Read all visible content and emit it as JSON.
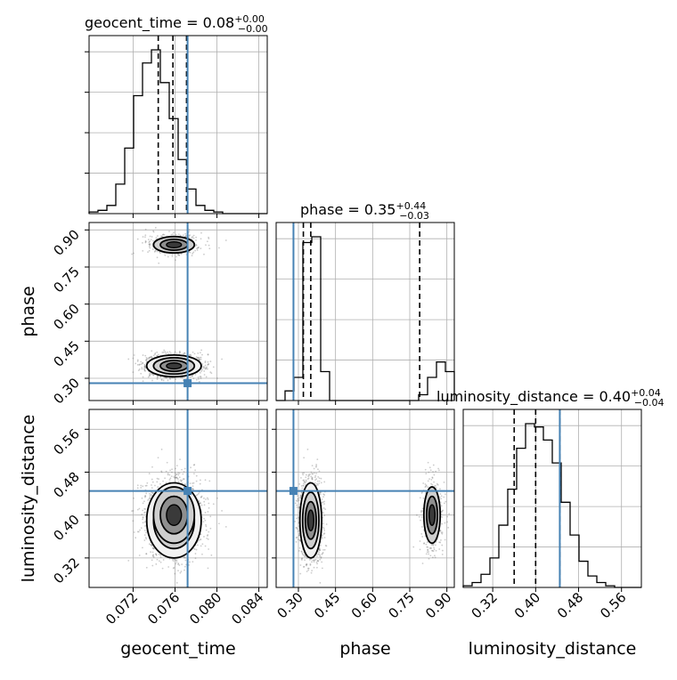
{
  "chart_data": {
    "type": "corner",
    "parameters": [
      "geocent_time",
      "phase",
      "luminosity_distance"
    ],
    "titles": [
      {
        "param": "geocent_time",
        "text": "geocent_time = 0.08",
        "plus": "+0.00",
        "minus": "−0.00"
      },
      {
        "param": "phase",
        "text": "phase = 0.35",
        "plus": "+0.44",
        "minus": "−0.03"
      },
      {
        "param": "luminosity_distance",
        "text": "luminosity_distance = 0.40",
        "plus": "+0.04",
        "minus": "−0.04"
      }
    ],
    "axes": {
      "geocent_time": {
        "range": [
          0.0678,
          0.0848
        ],
        "ticks": [
          0.072,
          0.076,
          0.08,
          0.084
        ],
        "tick_labels": [
          "0.072",
          "0.076",
          "0.080",
          "0.084"
        ]
      },
      "phase": {
        "range": [
          0.21,
          0.93
        ],
        "ticks": [
          0.3,
          0.45,
          0.6,
          0.75,
          0.9
        ],
        "tick_labels": [
          "0.30",
          "0.45",
          "0.60",
          "0.75",
          "0.90"
        ]
      },
      "luminosity_distance": {
        "range": [
          0.265,
          0.597
        ],
        "ticks": [
          0.32,
          0.4,
          0.48,
          0.56
        ],
        "tick_labels": [
          "0.32",
          "0.40",
          "0.48",
          "0.56"
        ]
      }
    },
    "truths": {
      "geocent_time": 0.0772,
      "phase": 0.28,
      "luminosity_distance": 0.445
    },
    "quantiles": {
      "geocent_time": [
        0.0744,
        0.0758,
        0.0771
      ],
      "phase": [
        0.32,
        0.35,
        0.79
      ],
      "luminosity_distance": [
        0.36,
        0.4,
        0.445
      ]
    },
    "histograms": {
      "geocent_time": {
        "edges_start": 0.0678,
        "bin_width": 0.00085,
        "counts": [
          1,
          2,
          5,
          18,
          40,
          72,
          92,
          100,
          80,
          58,
          33,
          15,
          5,
          2,
          1,
          0,
          0,
          0,
          0,
          0
        ]
      },
      "phase": {
        "edges_start": 0.21,
        "bin_width": 0.036,
        "counts": [
          0,
          5,
          12,
          82,
          85,
          15,
          0,
          0,
          0,
          0,
          0,
          0,
          0,
          0,
          0,
          0,
          3,
          12,
          20,
          15
        ]
      },
      "luminosity_distance": {
        "edges_start": 0.265,
        "bin_width": 0.0166,
        "counts": [
          1,
          3,
          8,
          18,
          38,
          60,
          85,
          100,
          98,
          90,
          76,
          52,
          32,
          16,
          7,
          3,
          1,
          0,
          0,
          0
        ]
      }
    },
    "modes": [
      {
        "geocent_time": 0.0759,
        "phase": 0.35,
        "luminosity_distance": 0.39,
        "sigma_t": 0.0013,
        "sigma_phase": 0.022,
        "sigma_d": 0.035,
        "weight": 0.8
      },
      {
        "geocent_time": 0.0759,
        "phase": 0.84,
        "luminosity_distance": 0.4,
        "sigma_t": 0.0013,
        "sigma_phase": 0.022,
        "sigma_d": 0.035,
        "weight": 0.2
      }
    ],
    "grid": true
  }
}
